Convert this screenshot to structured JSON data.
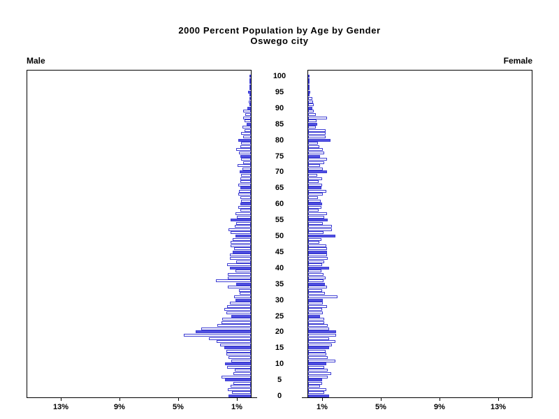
{
  "title": {
    "line1": "2000 Percent Population by Age by Gender",
    "line2": "Oswego city"
  },
  "panels": {
    "male_label": "Male",
    "female_label": "Female"
  },
  "chart_data": {
    "type": "bar",
    "subtype": "population-pyramid",
    "title": "2000 Percent Population by Age by Gender",
    "subtitle": "Oswego city",
    "legend_position": "none",
    "grid": false,
    "age_axis": {
      "min": 0,
      "max": 100,
      "tick_step": 5,
      "tick_labels": [
        "0",
        "5",
        "10",
        "15",
        "20",
        "25",
        "30",
        "35",
        "40",
        "45",
        "50",
        "55",
        "60",
        "65",
        "70",
        "75",
        "80",
        "85",
        "90",
        "95",
        "100"
      ]
    },
    "x_axis": {
      "unit": "percent",
      "male_tick_labels": [
        "13%",
        "9%",
        "5%",
        "1%"
      ],
      "female_tick_labels": [
        "1%",
        "5%",
        "9%",
        "13%"
      ],
      "tick_values": [
        1,
        5,
        9,
        13
      ],
      "xlim": [
        0,
        15.3
      ]
    },
    "solid_fill_rule": "bars for ages divisible by 5 are filled solid blue; other ages are white with blue outline",
    "colors": {
      "bar_fill": "#5151e3",
      "bar_outline": "#3d3dd3",
      "empty_fill": "#ffffff",
      "axis": "#000000"
    },
    "ages_start": 0,
    "ages_end": 100,
    "series": [
      {
        "name": "Male",
        "direction": "left",
        "values": [
          1.5,
          1.3,
          1.55,
          1.4,
          1.2,
          1.75,
          2.0,
          1.2,
          1.1,
          1.6,
          1.75,
          1.35,
          1.5,
          1.65,
          1.65,
          1.8,
          2.1,
          2.35,
          2.85,
          4.55,
          3.75,
          3.4,
          2.3,
          2.0,
          1.95,
          1.35,
          1.65,
          1.8,
          1.6,
          1.45,
          1.05,
          1.15,
          0.75,
          0.8,
          1.55,
          1.0,
          2.4,
          1.55,
          1.55,
          1.05,
          1.45,
          1.6,
          1.0,
          1.45,
          1.45,
          1.25,
          1.15,
          1.4,
          1.4,
          1.25,
          1.05,
          1.4,
          1.5,
          1.1,
          1.0,
          1.4,
          0.95,
          1.05,
          0.7,
          0.85,
          0.7,
          0.65,
          0.7,
          0.85,
          0.8,
          0.7,
          0.85,
          0.7,
          0.7,
          0.65,
          0.75,
          0.55,
          0.9,
          0.5,
          0.65,
          0.7,
          0.8,
          1.0,
          0.7,
          0.65,
          0.85,
          0.5,
          0.65,
          0.45,
          0.55,
          0.3,
          0.45,
          0.5,
          0.4,
          0.5,
          0.25,
          0.1,
          0.12,
          0.08,
          0.05,
          0.2,
          0.05,
          0.03,
          0.02,
          0.02,
          0.04
        ]
      },
      {
        "name": "Female",
        "direction": "right",
        "values": [
          1.43,
          1.08,
          1.25,
          0.8,
          0.95,
          0.95,
          1.35,
          1.55,
          1.35,
          1.1,
          1.25,
          1.85,
          1.35,
          1.25,
          1.2,
          1.43,
          1.6,
          1.85,
          1.45,
          1.9,
          1.9,
          1.45,
          1.35,
          1.1,
          1.08,
          0.8,
          1.02,
          0.95,
          1.3,
          1.02,
          1.0,
          2.0,
          1.15,
          0.95,
          1.3,
          1.15,
          1.03,
          1.2,
          1.03,
          0.92,
          1.43,
          0.95,
          1.1,
          1.33,
          1.3,
          1.3,
          1.27,
          1.24,
          0.75,
          0.9,
          1.88,
          1.05,
          1.6,
          1.6,
          1.02,
          1.35,
          1.1,
          1.3,
          0.7,
          0.9,
          0.95,
          0.85,
          0.65,
          1.0,
          1.25,
          0.9,
          0.95,
          0.7,
          0.95,
          0.6,
          1.3,
          1.0,
          0.8,
          1.1,
          1.3,
          0.8,
          1.1,
          1.0,
          0.75,
          0.65,
          1.5,
          1.18,
          1.18,
          1.18,
          0.5,
          0.63,
          0.55,
          1.27,
          0.5,
          0.4,
          0.3,
          0.4,
          0.32,
          0.29,
          0.1,
          0.13,
          0.06,
          0.05,
          0.04,
          0.03,
          0.1
        ]
      }
    ]
  }
}
